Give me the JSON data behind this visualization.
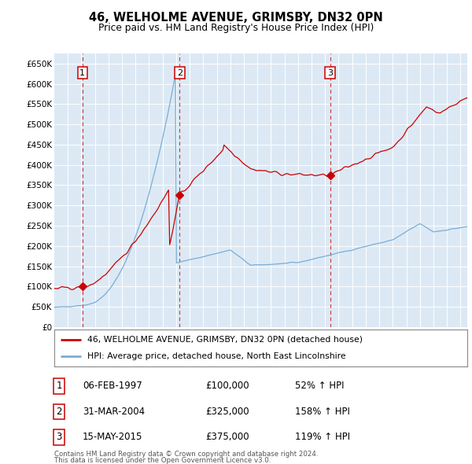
{
  "title": "46, WELHOLME AVENUE, GRIMSBY, DN32 0PN",
  "subtitle": "Price paid vs. HM Land Registry's House Price Index (HPI)",
  "plot_bg_color": "#dce9f5",
  "ylim": [
    0,
    675000
  ],
  "yticks": [
    0,
    50000,
    100000,
    150000,
    200000,
    250000,
    300000,
    350000,
    400000,
    450000,
    500000,
    550000,
    600000,
    650000
  ],
  "ytick_labels": [
    "£0",
    "£50K",
    "£100K",
    "£150K",
    "£200K",
    "£250K",
    "£300K",
    "£350K",
    "£400K",
    "£450K",
    "£500K",
    "£550K",
    "£600K",
    "£650K"
  ],
  "xlim_start": 1995.0,
  "xlim_end": 2025.5,
  "sale_years": [
    1997.08,
    2004.25,
    2015.37
  ],
  "sale_prices": [
    100000,
    325000,
    375000
  ],
  "sale_labels": [
    "1",
    "2",
    "3"
  ],
  "sale_dates": [
    "06-FEB-1997",
    "31-MAR-2004",
    "15-MAY-2015"
  ],
  "sale_price_labels": [
    "£100,000",
    "£325,000",
    "£375,000"
  ],
  "sale_pct_labels": [
    "52% ↑ HPI",
    "158% ↑ HPI",
    "119% ↑ HPI"
  ],
  "red_color": "#cc0000",
  "blue_color": "#7aadd4",
  "legend_label_red": "46, WELHOLME AVENUE, GRIMSBY, DN32 0PN (detached house)",
  "legend_label_blue": "HPI: Average price, detached house, North East Lincolnshire",
  "footer1": "Contains HM Land Registry data © Crown copyright and database right 2024.",
  "footer2": "This data is licensed under the Open Government Licence v3.0."
}
